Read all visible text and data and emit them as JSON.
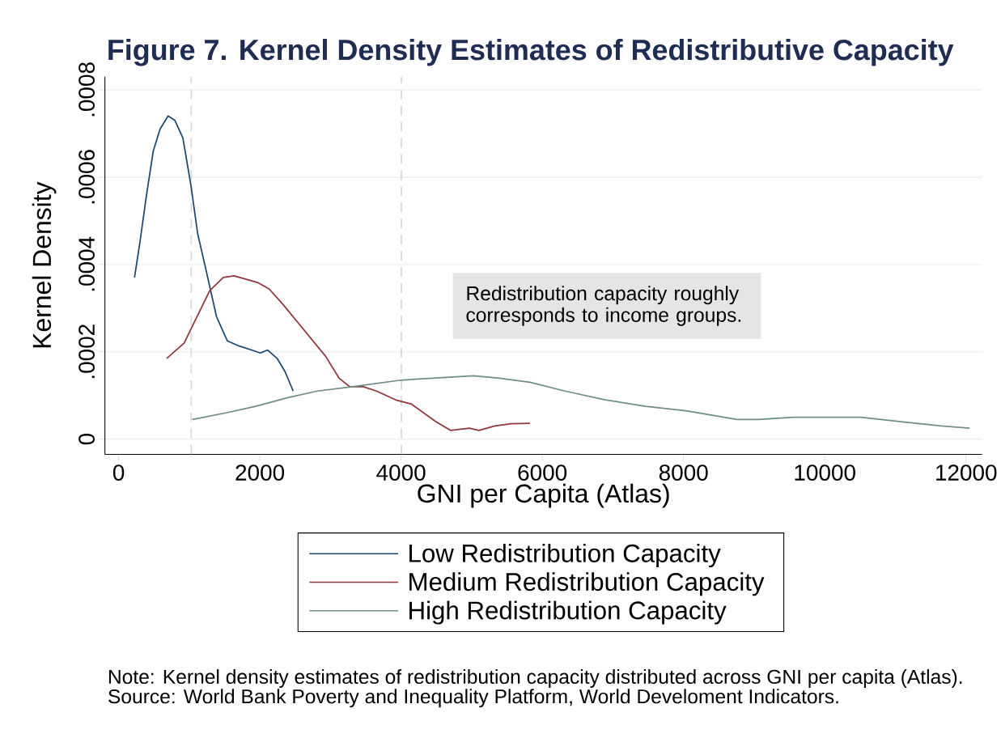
{
  "chart_data": {
    "type": "line",
    "title": "Figure 7. Kernel Density Estimates of Redistributive Capacity",
    "xlabel": "GNI per Capita (Atlas)",
    "ylabel": "Kernel Density",
    "series": [
      {
        "name": "Low Redistribution Capacity",
        "color": "#1a476f",
        "x": [
          225,
          301,
          396,
          491,
          587,
          701,
          796,
          910,
          1025,
          1120,
          1234,
          1387,
          1539,
          1710,
          1882,
          2007,
          2110,
          2244,
          2358,
          2472
        ],
        "values": [
          0.00037,
          0.00045,
          0.00056,
          0.00066,
          0.00071,
          0.00074,
          0.00073,
          0.00069,
          0.00058,
          0.00047,
          0.00039,
          0.00028,
          0.000225,
          0.000213,
          0.000204,
          0.000197,
          0.000204,
          0.000185,
          0.000154,
          0.00011
        ]
      },
      {
        "name": "Medium Redistribution Capacity",
        "color": "#90353b",
        "x": [
          682,
          929,
          1063,
          1291,
          1482,
          1634,
          1787,
          1977,
          2130,
          2320,
          2625,
          2930,
          3120,
          3272,
          3463,
          3653,
          3920,
          4149,
          4491,
          4700,
          4968,
          5101,
          5329,
          5558,
          5825
        ],
        "values": [
          0.000185,
          0.00022,
          0.000265,
          0.00034,
          0.00037,
          0.000374,
          0.000367,
          0.000358,
          0.000344,
          0.00031,
          0.00025,
          0.00019,
          0.00014,
          0.00012,
          0.00012,
          0.00011,
          9e-05,
          8e-05,
          4e-05,
          2e-05,
          2.5e-05,
          2e-05,
          3e-05,
          3.5e-05,
          3.6e-05
        ]
      },
      {
        "name": "High Redistribution Capacity",
        "color": "#6e8e84",
        "x": [
          1044,
          1520,
          1939,
          2396,
          2815,
          3310,
          3996,
          4491,
          5025,
          5368,
          5825,
          6320,
          6891,
          7463,
          8034,
          8758,
          9063,
          9558,
          10206,
          10510,
          11082,
          11653,
          12050
        ],
        "values": [
          4.5e-05,
          6e-05,
          7.5e-05,
          9.5e-05,
          0.00011,
          0.00012,
          0.000135,
          0.00014,
          0.000145,
          0.00014,
          0.00013,
          0.00011,
          9e-05,
          7.5e-05,
          6.5e-05,
          4.5e-05,
          4.5e-05,
          5e-05,
          5e-05,
          5e-05,
          4e-05,
          3e-05,
          2.5e-05
        ]
      }
    ],
    "xlim": [
      -194,
      12229
    ],
    "xticks": [
      0,
      2000,
      4000,
      6000,
      8000,
      10000,
      12000
    ],
    "ylim": [
      -3.5e-05,
      0.00083
    ],
    "yticks": [
      0,
      {
        "value": 0.0002,
        "label": ".0002"
      },
      {
        "value": 0.0004,
        "label": ".0004"
      },
      {
        "value": 0.0006,
        "label": ".0006"
      },
      {
        "value": 0.0008,
        "label": ".0008"
      }
    ],
    "ref_lines": [
      {
        "axis": "x",
        "value": 1030,
        "color": "#d9d9d9",
        "line_style": "dashed"
      },
      {
        "axis": "x",
        "value": 4005,
        "color": "#d9d9d9",
        "line_style": "dashed"
      }
    ],
    "grid": "y",
    "legend": "bottom",
    "annotations": [
      "Redistribution capacity roughly corresponds to income groups.",
      "Note: Kernel density estimates of redistribution capacity distributed across GNI per capita (Atlas).",
      "Source: World Bank Poverty and Inequality Platform, World Develoment Indicators."
    ]
  }
}
